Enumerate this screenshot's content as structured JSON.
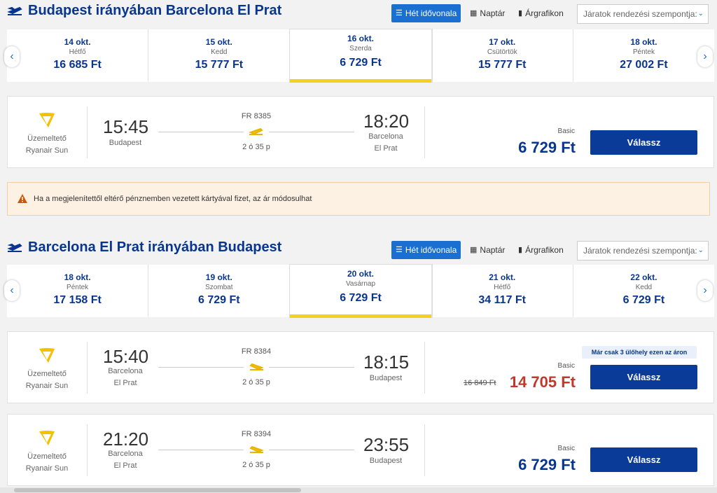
{
  "warning_text": "Ha a megjelenítettől eltérő pénznemben vezetett kártyával fizet, az ár módosulhat",
  "view_buttons": {
    "week": "Hét idővonala",
    "calendar": "Naptár",
    "chart": "Árgrafikon"
  },
  "sort_placeholder": "Járatok rendezési szempontja:",
  "outbound": {
    "title": "Budapest irányában Barcelona El Prat",
    "dates": [
      {
        "date": "14 okt.",
        "weekday": "Hétfő",
        "price": "16 685 Ft"
      },
      {
        "date": "15 okt.",
        "weekday": "Kedd",
        "price": "15 777 Ft"
      },
      {
        "date": "16 okt.",
        "weekday": "Szerda",
        "price": "6 729 Ft"
      },
      {
        "date": "17 okt.",
        "weekday": "Csütörtök",
        "price": "15 777 Ft"
      },
      {
        "date": "18 okt.",
        "weekday": "Péntek",
        "price": "27 002 Ft"
      }
    ],
    "flights": [
      {
        "operator_label": "Üzemeltető",
        "operator": "Ryanair Sun",
        "dep_time": "15:45",
        "dep_city": "Budapest",
        "flight_no": "FR 8385",
        "duration": "2 ó 35 p",
        "arr_time": "18:20",
        "arr_city": "Barcelona\nEl Prat",
        "fare": "Basic",
        "price": "6 729 Ft",
        "button": "Válassz"
      }
    ]
  },
  "inbound": {
    "title": "Barcelona El Prat irányában Budapest",
    "dates": [
      {
        "date": "18 okt.",
        "weekday": "Péntek",
        "price": "17 158 Ft"
      },
      {
        "date": "19 okt.",
        "weekday": "Szombat",
        "price": "6 729 Ft"
      },
      {
        "date": "20 okt.",
        "weekday": "Vasárnap",
        "price": "6 729 Ft"
      },
      {
        "date": "21 okt.",
        "weekday": "Hétfő",
        "price": "34 117 Ft"
      },
      {
        "date": "22 okt.",
        "weekday": "Kedd",
        "price": "6 729 Ft"
      }
    ],
    "flights": [
      {
        "operator_label": "Üzemeltető",
        "operator": "Ryanair Sun",
        "dep_time": "15:40",
        "dep_city": "Barcelona\nEl Prat",
        "flight_no": "FR 8384",
        "duration": "2 ó 35 p",
        "arr_time": "18:15",
        "arr_city": "Budapest",
        "fare": "Basic",
        "old_price": "16 849 Ft",
        "price": "14 705 Ft",
        "scarcity": "Már csak 3 ülőhely ezen az áron",
        "button": "Válassz"
      },
      {
        "operator_label": "Üzemeltető",
        "operator": "Ryanair Sun",
        "dep_time": "21:20",
        "dep_city": "Barcelona\nEl Prat",
        "flight_no": "FR 8394",
        "duration": "2 ó 35 p",
        "arr_time": "23:55",
        "arr_city": "Budapest",
        "fare": "Basic",
        "price": "6 729 Ft",
        "button": "Válassz"
      }
    ]
  },
  "colors": {
    "brand_blue": "#073590",
    "accent_blue": "#1a6fd1",
    "selected_underline": "#f2d024",
    "sale_red": "#c0392b"
  },
  "icons": {
    "section": "plane-icon",
    "prev": "chevron-left-icon",
    "next": "chevron-right-icon",
    "warning": "warning-icon",
    "airline": "ryanair-harp-logo"
  }
}
